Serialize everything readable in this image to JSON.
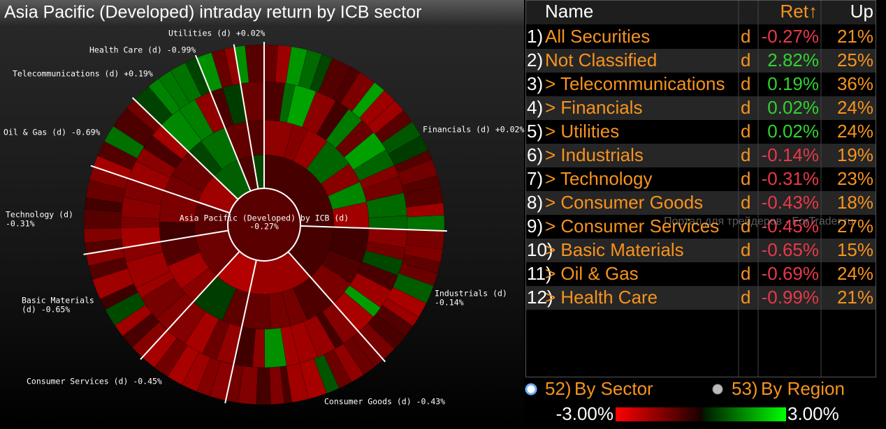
{
  "title": "Asia Pacific (Developed) intraday return by ICB sector",
  "sunburst": {
    "center_lines": [
      "Asia Pacific (Developed) by ICB (d)",
      "-0.27%"
    ],
    "sector_labels": [
      {
        "lines": [
          "Utilities (d) +0.02%"
        ]
      },
      {
        "lines": [
          "Health Care (d) -0.99%"
        ]
      },
      {
        "lines": [
          "Telecommunications (d) +0.19%"
        ]
      },
      {
        "lines": [
          "Oil & Gas (d) -0.69%"
        ]
      },
      {
        "lines": [
          "Technology (d)",
          "-0.31%"
        ]
      },
      {
        "lines": [
          "Basic Materials",
          "(d) -0.65%"
        ]
      },
      {
        "lines": [
          "Consumer Services (d) -0.45%"
        ]
      },
      {
        "lines": [
          "Consumer Goods (d) -0.43%"
        ]
      },
      {
        "lines": [
          "Industrials (d)",
          "-0.14%"
        ]
      },
      {
        "lines": [
          "Financials (d) +0.02%"
        ]
      }
    ]
  },
  "table": {
    "columns": [
      "Name",
      "Ret↑",
      "Up"
    ],
    "rows": [
      [
        "1)",
        "All Securities",
        "d",
        "-0.27%",
        "21%"
      ],
      [
        "2)",
        "Not Classified",
        "d",
        "2.82%",
        "25%"
      ],
      [
        "3)",
        "> Telecommunications",
        "d",
        "0.19%",
        "36%"
      ],
      [
        "4)",
        "> Financials",
        "d",
        "0.02%",
        "24%"
      ],
      [
        "5)",
        "> Utilities",
        "d",
        "0.02%",
        "24%"
      ],
      [
        "6)",
        "> Industrials",
        "d",
        "-0.14%",
        "19%"
      ],
      [
        "7)",
        "> Technology",
        "d",
        "-0.31%",
        "23%"
      ],
      [
        "8)",
        "> Consumer Goods",
        "d",
        "-0.43%",
        "18%"
      ],
      [
        "9)",
        "> Consumer Services",
        "d",
        "-0.45%",
        "27%"
      ],
      [
        "10)",
        "> Basic Materials",
        "d",
        "-0.65%",
        "15%"
      ],
      [
        "11)",
        "> Oil & Gas",
        "d",
        "-0.69%",
        "24%"
      ],
      [
        "12)",
        "> Health Care",
        "d",
        "-0.99%",
        "21%"
      ]
    ]
  },
  "watermark": "Портал для трейдеров - ForTrader.ru",
  "options": [
    {
      "key": "52)",
      "label": "By Sector"
    },
    {
      "key": "53)",
      "label": "By Region"
    }
  ],
  "scale": {
    "min": "-3.00%",
    "max": "3.00%"
  }
}
